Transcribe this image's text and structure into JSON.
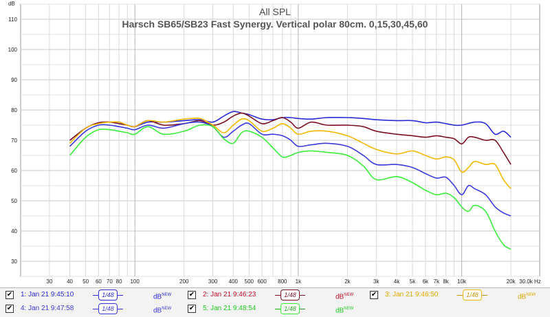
{
  "chart_data": {
    "type": "line",
    "title": "All SPL",
    "subtitle": "Harsch SB65/SB23 Fast Synergy. Vertical polar 80cm. 0,15,30,45,60",
    "ylabel": "dB",
    "xlabel": "Hz",
    "xscale": "log",
    "xlim": [
      20,
      30000
    ],
    "ylim": [
      25,
      115
    ],
    "yticks": [
      "30",
      "40",
      "50",
      "60",
      "70",
      "80",
      "90",
      "100",
      "110"
    ],
    "xtick_values": [
      30,
      40,
      50,
      60,
      70,
      80,
      90,
      100,
      200,
      300,
      400,
      500,
      600,
      800,
      1000,
      2000,
      3000,
      4000,
      5000,
      6000,
      7000,
      8000,
      10000,
      20000,
      30000
    ],
    "xtick_labels": [
      "30",
      "40",
      "50",
      "60",
      "70",
      "80",
      "100",
      "200",
      "300",
      "400",
      "500",
      "600",
      "800",
      "1k",
      "2k",
      "3k",
      "4k",
      "5k",
      "6k",
      "7k",
      "8k",
      "10k",
      "20k",
      "30.0k Hz"
    ],
    "xtick_label_values": [
      30,
      40,
      50,
      60,
      70,
      80,
      100,
      200,
      300,
      400,
      500,
      600,
      800,
      1000,
      2000,
      3000,
      4000,
      5000,
      6000,
      7000,
      8000,
      10000,
      20000,
      30000
    ],
    "grid": true,
    "series": [
      {
        "name": "1: Jan 21 9:45:10",
        "color": "#2b2bd6",
        "x": [
          40,
          50,
          60,
          70,
          80,
          90,
          100,
          120,
          150,
          200,
          250,
          300,
          350,
          400,
          450,
          500,
          600,
          700,
          800,
          900,
          1000,
          1200,
          1500,
          2000,
          2500,
          3000,
          4000,
          5000,
          6000,
          7000,
          8000,
          9000,
          10000,
          12000,
          14000,
          16000,
          18000,
          20000
        ],
        "y": [
          70,
          74,
          75.8,
          76,
          76,
          75,
          74.5,
          76,
          76,
          76.5,
          76.8,
          76,
          78,
          79.5,
          79,
          78.5,
          77,
          76.8,
          77.5,
          77.5,
          77.2,
          77,
          77.5,
          77.5,
          77.2,
          76.8,
          76.5,
          76.5,
          75.8,
          76,
          75.5,
          75,
          75,
          76,
          75.5,
          72,
          73,
          71
        ]
      },
      {
        "name": "2: Jan 21 9:46:23",
        "color": "#7a1020",
        "x": [
          40,
          50,
          60,
          70,
          80,
          90,
          100,
          120,
          150,
          200,
          250,
          300,
          350,
          400,
          450,
          500,
          600,
          700,
          800,
          900,
          1000,
          1200,
          1500,
          2000,
          2500,
          3000,
          4000,
          5000,
          6000,
          7000,
          8000,
          9000,
          10000,
          11000,
          12000,
          14000,
          16000,
          18000,
          20000
        ],
        "y": [
          70,
          74,
          75.8,
          76,
          75.5,
          75,
          74.5,
          76.5,
          75,
          75.5,
          76.5,
          75,
          76,
          78,
          79,
          78,
          75.5,
          76.5,
          77.5,
          76,
          74,
          76,
          75,
          75,
          74.5,
          73,
          72,
          71.5,
          71,
          71.5,
          71,
          70.5,
          68.8,
          71,
          71,
          70,
          70,
          66,
          62
        ]
      },
      {
        "name": "3: Jan 21 9:46:50",
        "color": "#f0b800",
        "x": [
          40,
          50,
          60,
          70,
          80,
          90,
          100,
          120,
          150,
          200,
          250,
          300,
          350,
          400,
          450,
          500,
          600,
          700,
          800,
          900,
          1000,
          1200,
          1500,
          2000,
          2500,
          3000,
          4000,
          5000,
          6000,
          7000,
          8000,
          9000,
          10000,
          11000,
          12000,
          14000,
          16000,
          18000,
          20000
        ],
        "y": [
          69,
          74,
          75.5,
          76,
          76,
          75,
          74.5,
          76.5,
          76,
          77,
          77.2,
          75,
          72.5,
          75,
          77,
          76.5,
          73,
          74,
          75.5,
          74,
          72,
          73,
          73,
          71.5,
          69,
          67,
          65.5,
          66.5,
          65,
          63.8,
          64.5,
          63.5,
          59.5,
          61,
          63,
          62,
          62,
          57,
          54
        ]
      },
      {
        "name": "4: Jan 21 9:47:58",
        "color": "#3a3adc",
        "x": [
          40,
          50,
          60,
          70,
          80,
          90,
          100,
          120,
          150,
          200,
          250,
          300,
          350,
          400,
          450,
          500,
          600,
          700,
          800,
          900,
          1000,
          1200,
          1500,
          2000,
          2500,
          3000,
          4000,
          5000,
          6000,
          7000,
          8000,
          9000,
          10000,
          11000,
          12000,
          14000,
          16000,
          18000,
          20000
        ],
        "y": [
          68,
          73,
          75,
          75,
          74.5,
          74,
          73.5,
          75,
          74,
          75.5,
          76,
          74.5,
          71,
          73,
          75,
          75.5,
          72,
          72,
          71.5,
          70,
          68,
          68.5,
          69,
          68,
          65,
          62,
          62,
          61,
          59,
          57.5,
          57.8,
          55,
          52,
          55,
          54,
          52,
          48,
          46,
          45
        ]
      },
      {
        "name": "5: Jan 21 9:48:54",
        "color": "#3aee3a",
        "x": [
          40,
          50,
          60,
          70,
          80,
          90,
          100,
          120,
          150,
          200,
          250,
          300,
          350,
          400,
          450,
          500,
          600,
          700,
          800,
          900,
          1000,
          1200,
          1500,
          2000,
          2500,
          3000,
          4000,
          5000,
          6000,
          7000,
          8000,
          9000,
          10000,
          11000,
          12000,
          14000,
          16000,
          18000,
          20000
        ],
        "y": [
          65,
          71,
          73.5,
          73.5,
          73,
          72.5,
          72,
          74.5,
          72,
          73,
          75,
          74.5,
          70.5,
          69,
          72.5,
          73,
          71,
          67.5,
          64.5,
          65,
          66,
          66.5,
          66,
          65,
          61.5,
          57,
          58,
          56,
          53.5,
          52,
          52.5,
          51,
          48,
          46.5,
          48.5,
          46.5,
          40,
          35.5,
          34
        ]
      }
    ]
  },
  "legend": [
    {
      "label": "1: Jan 21 9:45:10",
      "smooth": "1/48",
      "db": "dB",
      "db_sup": "NEW",
      "check": "✔",
      "color": "#2b2bd6"
    },
    {
      "label": "2: Jan 21 9:46:23",
      "smooth": "1/48",
      "db": "dB",
      "db_sup": "NEW",
      "check": "✔",
      "color": "#7a1020"
    },
    {
      "label": "3: Jan 21 9:46:50",
      "smooth": "1/48",
      "db": "dB",
      "db_sup": "NEW",
      "check": "✔",
      "color": "#f0b800"
    },
    {
      "label": "4: Jan 21 9:47:58",
      "smooth": "1/48",
      "db": "dB",
      "db_sup": "NEW",
      "check": "✔",
      "color": "#3a3adc"
    },
    {
      "label": "5: Jan 21 9:48:54",
      "smooth": "1/48",
      "db": "dB",
      "db_sup": "NEW",
      "check": "✔",
      "color": "#3aee3a"
    }
  ]
}
